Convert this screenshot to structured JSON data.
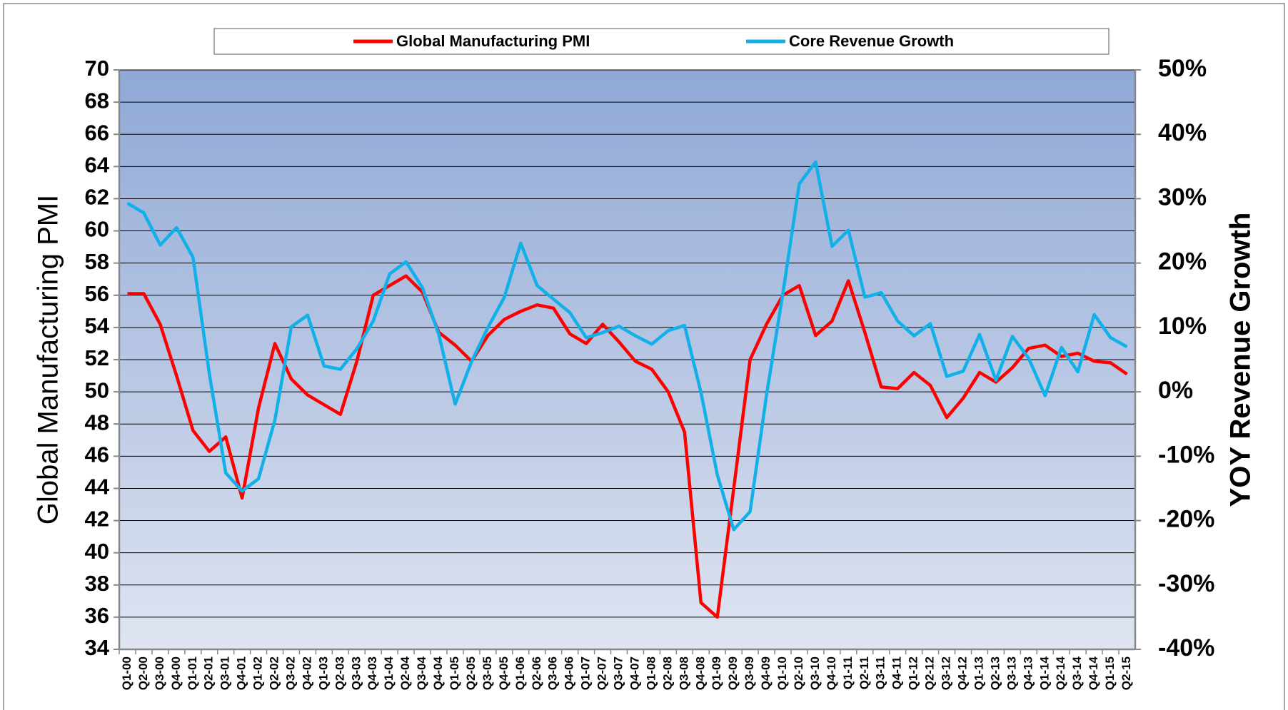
{
  "chart_data": {
    "type": "line",
    "categories": [
      "Q1-00",
      "Q2-00",
      "Q3-00",
      "Q4-00",
      "Q1-01",
      "Q2-01",
      "Q3-01",
      "Q4-01",
      "Q1-02",
      "Q2-02",
      "Q3-02",
      "Q4-02",
      "Q1-03",
      "Q2-03",
      "Q3-03",
      "Q4-03",
      "Q1-04",
      "Q2-04",
      "Q3-04",
      "Q4-04",
      "Q1-05",
      "Q2-05",
      "Q3-05",
      "Q4-05",
      "Q1-06",
      "Q2-06",
      "Q3-06",
      "Q4-06",
      "Q1-07",
      "Q2-07",
      "Q3-07",
      "Q4-07",
      "Q1-08",
      "Q2-08",
      "Q3-08",
      "Q4-08",
      "Q1-09",
      "Q2-09",
      "Q3-09",
      "Q4-09",
      "Q1-10",
      "Q2-10",
      "Q3-10",
      "Q4-10",
      "Q1-11",
      "Q2-11",
      "Q3-11",
      "Q4-11",
      "Q1-12",
      "Q2-12",
      "Q3-12",
      "Q4-12",
      "Q1-13",
      "Q2-13",
      "Q3-13",
      "Q4-13",
      "Q1-14",
      "Q2-14",
      "Q3-14",
      "Q4-14",
      "Q1-15",
      "Q2-15"
    ],
    "series": [
      {
        "name": "Global Manufacturing PMI",
        "color": "#ff0000",
        "axis": "y",
        "values": [
          56.1,
          56.1,
          54.2,
          51.0,
          47.6,
          46.3,
          47.2,
          43.4,
          49.0,
          53.0,
          50.8,
          49.8,
          49.2,
          48.6,
          51.9,
          56.0,
          56.6,
          57.2,
          56.2,
          53.7,
          52.9,
          51.9,
          53.5,
          54.5,
          55.0,
          55.4,
          55.2,
          53.6,
          53.0,
          54.2,
          53.1,
          51.9,
          51.4,
          50.0,
          47.5,
          36.9,
          36.0,
          44.0,
          52.0,
          54.2,
          56.0,
          56.6,
          53.5,
          54.4,
          56.9,
          53.7,
          50.3,
          50.2,
          51.2,
          50.4,
          48.4,
          49.6,
          51.2,
          50.6,
          51.5,
          52.7,
          52.9,
          52.2,
          52.4,
          51.9,
          51.8,
          51.1
        ]
      },
      {
        "name": "Core Revenue Growth",
        "color": "#11b0e8",
        "axis": "y2",
        "values": [
          29.3,
          27.8,
          22.8,
          25.5,
          20.9,
          2.8,
          -12.6,
          -15.4,
          -13.5,
          -4.4,
          10.1,
          11.9,
          4.0,
          3.5,
          6.7,
          11.0,
          18.3,
          20.2,
          16.2,
          8.9,
          -1.9,
          4.7,
          10.0,
          14.7,
          23.1,
          16.5,
          14.4,
          12.3,
          8.4,
          9.2,
          10.2,
          8.7,
          7.4,
          9.5,
          10.3,
          -0.1,
          -12.9,
          -21.4,
          -18.6,
          -0.5,
          15.3,
          32.3,
          35.7,
          22.6,
          25.1,
          14.7,
          15.4,
          11.0,
          8.7,
          10.6,
          2.4,
          3.2,
          8.9,
          1.8,
          8.6,
          5.2,
          -0.6,
          6.9,
          3.1,
          12.0,
          8.4,
          7.0
        ]
      }
    ],
    "y_label": "Global Manufacturing PMI",
    "y2_label": "YOY Revenue Growth",
    "ylim": [
      34,
      70
    ],
    "yticks": [
      34,
      36,
      38,
      40,
      42,
      44,
      46,
      48,
      50,
      52,
      54,
      56,
      58,
      60,
      62,
      64,
      66,
      68,
      70
    ],
    "y2lim": [
      -40,
      50
    ],
    "y2ticks": [
      {
        "value": -40,
        "label": "-40%"
      },
      {
        "value": -30,
        "label": "-30%"
      },
      {
        "value": -20,
        "label": "-20%"
      },
      {
        "value": -10,
        "label": "-10%"
      },
      {
        "value": 0,
        "label": "0%"
      },
      {
        "value": 10,
        "label": "10%"
      },
      {
        "value": 20,
        "label": "20%"
      },
      {
        "value": 30,
        "label": "30%"
      },
      {
        "value": 40,
        "label": "40%"
      },
      {
        "value": 50,
        "label": "50%"
      }
    ],
    "grid": true,
    "legend": "top"
  }
}
